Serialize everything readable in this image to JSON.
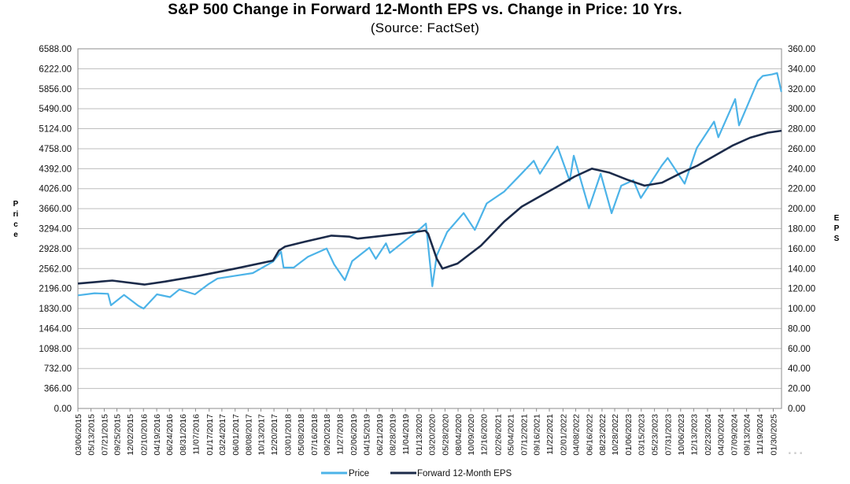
{
  "chart_data": {
    "type": "line",
    "title": "S&P 500 Change in Forward 12-Month EPS vs. Change in Price: 10 Yrs.",
    "subtitle": "(Source: FactSet)",
    "ylabel_left": "Price",
    "ylabel_right": "EPS",
    "ylim_left": [
      0,
      6588
    ],
    "ylim_right": [
      0,
      360
    ],
    "yticks_left": [
      "0.00",
      "366.00",
      "732.00",
      "1098.00",
      "1464.00",
      "1830.00",
      "2196.00",
      "2562.00",
      "2928.00",
      "3294.00",
      "3660.00",
      "4026.00",
      "4392.00",
      "4758.00",
      "5124.00",
      "5490.00",
      "5856.00",
      "6222.00",
      "6588.00"
    ],
    "yticks_right": [
      "0.00",
      "20.00",
      "40.00",
      "60.00",
      "80.00",
      "100.00",
      "120.00",
      "140.00",
      "160.00",
      "180.00",
      "200.00",
      "220.00",
      "240.00",
      "260.00",
      "280.00",
      "300.00",
      "320.00",
      "340.00",
      "360.00"
    ],
    "xticks": [
      "03/06/2015",
      "05/13/2015",
      "07/21/2015",
      "09/25/2015",
      "12/02/2015",
      "02/10/2016",
      "04/19/2016",
      "06/24/2016",
      "08/31/2016",
      "11/07/2016",
      "01/17/2017",
      "03/24/2017",
      "06/01/2017",
      "08/08/2017",
      "10/13/2017",
      "12/20/2017",
      "03/01/2018",
      "05/08/2018",
      "07/16/2018",
      "09/20/2018",
      "11/27/2018",
      "02/06/2019",
      "04/15/2019",
      "06/21/2019",
      "08/28/2019",
      "11/04/2019",
      "01/13/2020",
      "03/20/2020",
      "05/28/2020",
      "08/04/2020",
      "10/09/2020",
      "12/16/2020",
      "02/26/2021",
      "05/04/2021",
      "07/12/2021",
      "09/16/2021",
      "11/22/2021",
      "02/01/2022",
      "04/08/2022",
      "06/16/2022",
      "08/23/2022",
      "10/28/2022",
      "01/06/2023",
      "03/15/2023",
      "05/23/2023",
      "07/31/2023",
      "10/06/2023",
      "12/13/2023",
      "02/23/2024",
      "04/30/2024",
      "07/09/2024",
      "09/13/2024",
      "11/19/2024",
      "01/30/2025"
    ],
    "x_range": [
      "03/06/2015",
      "03/14/2025"
    ],
    "grid": true,
    "legend": "bottom",
    "series": [
      {
        "name": "Price",
        "axis": "left",
        "color": "#4cb3e8",
        "x": [
          "2015-03-06",
          "2015-06-01",
          "2015-08-10",
          "2015-08-25",
          "2015-11-01",
          "2016-01-15",
          "2016-02-11",
          "2016-04-20",
          "2016-06-27",
          "2016-08-15",
          "2016-11-04",
          "2017-01-15",
          "2017-03-01",
          "2017-06-01",
          "2017-09-01",
          "2017-12-15",
          "2018-01-26",
          "2018-02-08",
          "2018-04-02",
          "2018-06-15",
          "2018-09-20",
          "2018-10-29",
          "2018-12-24",
          "2019-01-31",
          "2019-04-30",
          "2019-06-03",
          "2019-07-26",
          "2019-08-15",
          "2019-11-01",
          "2019-12-31",
          "2020-02-19",
          "2020-03-23",
          "2020-04-15",
          "2020-06-08",
          "2020-09-02",
          "2020-10-30",
          "2020-12-31",
          "2021-03-31",
          "2021-06-30",
          "2021-09-02",
          "2021-10-04",
          "2022-01-03",
          "2022-03-08",
          "2022-03-29",
          "2022-06-16",
          "2022-08-16",
          "2022-10-12",
          "2022-12-01",
          "2023-02-02",
          "2023-03-13",
          "2023-06-30",
          "2023-07-31",
          "2023-10-27",
          "2023-12-29",
          "2024-03-28",
          "2024-04-19",
          "2024-07-16",
          "2024-08-05",
          "2024-11-11",
          "2024-12-06",
          "2025-01-23",
          "2025-02-19",
          "2025-03-13"
        ],
        "values": [
          2071,
          2110,
          2100,
          1890,
          2080,
          1880,
          1830,
          2090,
          2040,
          2180,
          2090,
          2280,
          2380,
          2430,
          2480,
          2690,
          2872,
          2580,
          2580,
          2780,
          2930,
          2640,
          2350,
          2700,
          2945,
          2740,
          3025,
          2850,
          3070,
          3230,
          3386,
          2237,
          2800,
          3230,
          3580,
          3270,
          3756,
          3970,
          4300,
          4536,
          4300,
          4797,
          4170,
          4630,
          3666,
          4300,
          3577,
          4080,
          4180,
          3855,
          4450,
          4589,
          4117,
          4770,
          5254,
          4967,
          5667,
          5186,
          6001,
          6090,
          6118,
          6144,
          5800
        ]
      },
      {
        "name": "Forward 12-Month EPS",
        "axis": "right",
        "color": "#1c2b4a",
        "x": [
          "2015-03-06",
          "2015-09-01",
          "2016-02-15",
          "2016-06-01",
          "2016-12-01",
          "2017-06-01",
          "2017-12-15",
          "2018-01-15",
          "2018-02-15",
          "2018-06-01",
          "2018-10-15",
          "2019-01-15",
          "2019-03-01",
          "2019-06-01",
          "2019-12-01",
          "2020-02-15",
          "2020-03-01",
          "2020-04-15",
          "2020-05-15",
          "2020-08-01",
          "2020-12-01",
          "2021-04-01",
          "2021-07-01",
          "2021-10-01",
          "2022-01-01",
          "2022-04-01",
          "2022-07-01",
          "2022-10-01",
          "2023-01-01",
          "2023-04-01",
          "2023-07-01",
          "2023-10-01",
          "2024-01-01",
          "2024-04-01",
          "2024-07-01",
          "2024-10-01",
          "2025-01-01",
          "2025-03-14"
        ],
        "values": [
          125,
          128,
          124,
          127,
          133,
          140,
          148,
          158,
          162,
          167,
          173,
          172,
          170,
          172,
          176,
          178,
          175,
          150,
          140,
          145,
          163,
          187,
          202,
          212,
          222,
          232,
          240,
          236,
          229,
          223,
          226,
          235,
          243,
          253,
          263,
          271,
          276,
          278
        ]
      }
    ]
  },
  "legend_items": [
    "Price",
    "Forward 12-Month EPS"
  ],
  "watermark": "..."
}
